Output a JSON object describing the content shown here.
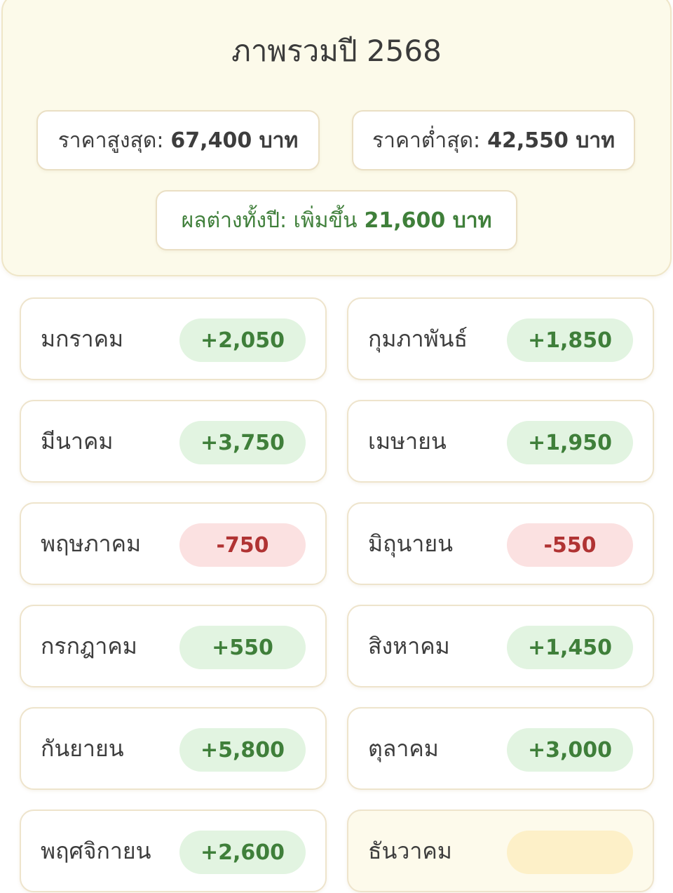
{
  "summary": {
    "title": "ภาพรวมปี 2568",
    "high_label": "ราคาสูงสุด:",
    "high_value": "67,400 บาท",
    "low_label": "ราคาต่ำสุด:",
    "low_value": "42,550 บาท",
    "diff_label": "ผลต่างทั้งปี: เพิ่มขึ้น",
    "diff_value": "21,600 บาท"
  },
  "colors": {
    "up_bg": "#e2f4e1",
    "up_text": "#3f7f3a",
    "down_bg": "#fbe1e1",
    "down_text": "#b03333",
    "pending_bg": "#fdf0c8"
  },
  "months": [
    {
      "name": "มกราคม",
      "change": "+2,050",
      "status": "up"
    },
    {
      "name": "กุมภาพันธ์",
      "change": "+1,850",
      "status": "up"
    },
    {
      "name": "มีนาคม",
      "change": "+3,750",
      "status": "up"
    },
    {
      "name": "เมษายน",
      "change": "+1,950",
      "status": "up"
    },
    {
      "name": "พฤษภาคม",
      "change": "-750",
      "status": "down"
    },
    {
      "name": "มิถุนายน",
      "change": "-550",
      "status": "down"
    },
    {
      "name": "กรกฎาคม",
      "change": "+550",
      "status": "up"
    },
    {
      "name": "สิงหาคม",
      "change": "+1,450",
      "status": "up"
    },
    {
      "name": "กันยายน",
      "change": "+5,800",
      "status": "up"
    },
    {
      "name": "ตุลาคม",
      "change": "+3,000",
      "status": "up"
    },
    {
      "name": "พฤศจิกายน",
      "change": "+2,600",
      "status": "up"
    },
    {
      "name": "ธันวาคม",
      "change": "",
      "status": "pending"
    }
  ]
}
